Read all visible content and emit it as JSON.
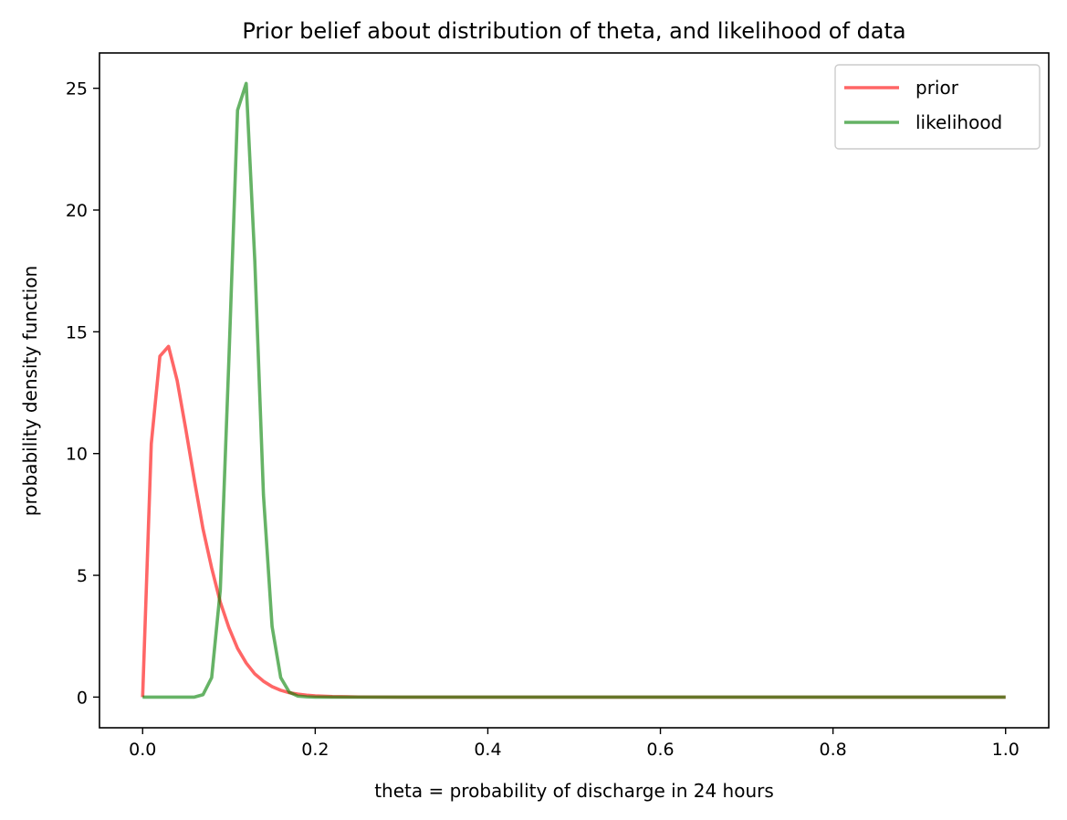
{
  "chart_data": {
    "type": "line",
    "title": "Prior belief about distribution of theta, and likelihood of data",
    "xlabel": "theta = probability of discharge in 24 hours",
    "ylabel": "probability density function",
    "xlim": [
      -0.05,
      1.05
    ],
    "ylim": [
      -1.26,
      26.45
    ],
    "x_ticks": [
      0.0,
      0.2,
      0.4,
      0.6,
      0.8,
      1.0
    ],
    "x_tick_labels": [
      "0.0",
      "0.2",
      "0.4",
      "0.6",
      "0.8",
      "1.0"
    ],
    "y_ticks": [
      0,
      5,
      10,
      15,
      20,
      25
    ],
    "y_tick_labels": [
      "0",
      "5",
      "10",
      "15",
      "20",
      "25"
    ],
    "grid": false,
    "legend_position": "top-right",
    "series": [
      {
        "name": "prior",
        "color": "#ff0000",
        "x": [
          0.0,
          0.01,
          0.02,
          0.03,
          0.04,
          0.05,
          0.06,
          0.07,
          0.08,
          0.09,
          0.1,
          0.11,
          0.12,
          0.13,
          0.14,
          0.15,
          0.16,
          0.17,
          0.18,
          0.19,
          0.2,
          0.22,
          0.25,
          0.3,
          0.4,
          0.5,
          0.6,
          0.7,
          0.8,
          0.9,
          1.0
        ],
        "y": [
          0.0,
          10.4,
          14.0,
          14.4,
          13.0,
          11.0,
          8.9,
          6.9,
          5.3,
          3.9,
          2.85,
          2.0,
          1.4,
          0.95,
          0.65,
          0.43,
          0.28,
          0.18,
          0.12,
          0.08,
          0.05,
          0.02,
          0.005,
          0.0,
          0.0,
          0.0,
          0.0,
          0.0,
          0.0,
          0.0,
          0.0
        ]
      },
      {
        "name": "likelihood",
        "color": "#008000",
        "x": [
          0.0,
          0.01,
          0.02,
          0.03,
          0.04,
          0.05,
          0.06,
          0.07,
          0.08,
          0.09,
          0.1,
          0.11,
          0.12,
          0.13,
          0.14,
          0.15,
          0.16,
          0.17,
          0.18,
          0.19,
          0.2,
          0.25,
          0.3,
          0.4,
          0.5,
          0.6,
          0.7,
          0.8,
          0.9,
          1.0
        ],
        "y": [
          0.0,
          0.0,
          0.0,
          0.0,
          0.0,
          0.0,
          0.0,
          0.1,
          0.8,
          4.4,
          13.9,
          24.1,
          25.2,
          17.9,
          8.3,
          2.9,
          0.8,
          0.2,
          0.04,
          0.01,
          0.0,
          0.0,
          0.0,
          0.0,
          0.0,
          0.0,
          0.0,
          0.0,
          0.0,
          0.0
        ]
      }
    ]
  }
}
